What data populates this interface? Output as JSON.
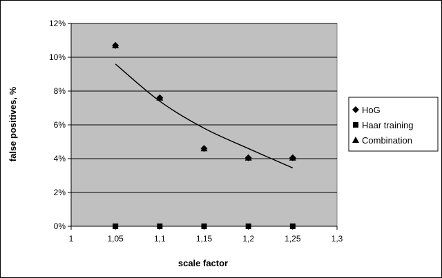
{
  "chart_data": {
    "type": "scatter",
    "xlabel": "scale factor",
    "ylabel": "false positives, %",
    "xlim": [
      1,
      1.3
    ],
    "ylim": [
      0,
      12
    ],
    "x_ticks": [
      "1",
      "1,05",
      "1,1",
      "1,15",
      "1,2",
      "1,25",
      "1,3"
    ],
    "y_ticks": [
      "0%",
      "2%",
      "4%",
      "6%",
      "8%",
      "10%",
      "12%"
    ],
    "grid": "horizontal",
    "legend_position": "right",
    "series": [
      {
        "name": "HoG",
        "marker": "diamond",
        "color": "#000000",
        "x": [
          1.05,
          1.1,
          1.15,
          1.2,
          1.25
        ],
        "y": [
          10.7,
          7.6,
          4.6,
          4.05,
          4.05
        ]
      },
      {
        "name": "Haar training",
        "marker": "square",
        "color": "#000000",
        "x": [
          1.05,
          1.1,
          1.15,
          1.2,
          1.25
        ],
        "y": [
          0,
          0,
          0,
          0,
          0
        ]
      },
      {
        "name": "Combination",
        "marker": "triangle",
        "color": "#000000",
        "x": [
          1.05,
          1.1,
          1.15,
          1.2,
          1.25
        ],
        "y": [
          10.7,
          7.6,
          4.6,
          4.05,
          4.05
        ]
      }
    ],
    "trendline": {
      "x": [
        1.05,
        1.1,
        1.15,
        1.2,
        1.25
      ],
      "y": [
        9.6,
        7.4,
        5.8,
        4.6,
        3.45
      ]
    },
    "plot_background": "#c0c0c0"
  }
}
